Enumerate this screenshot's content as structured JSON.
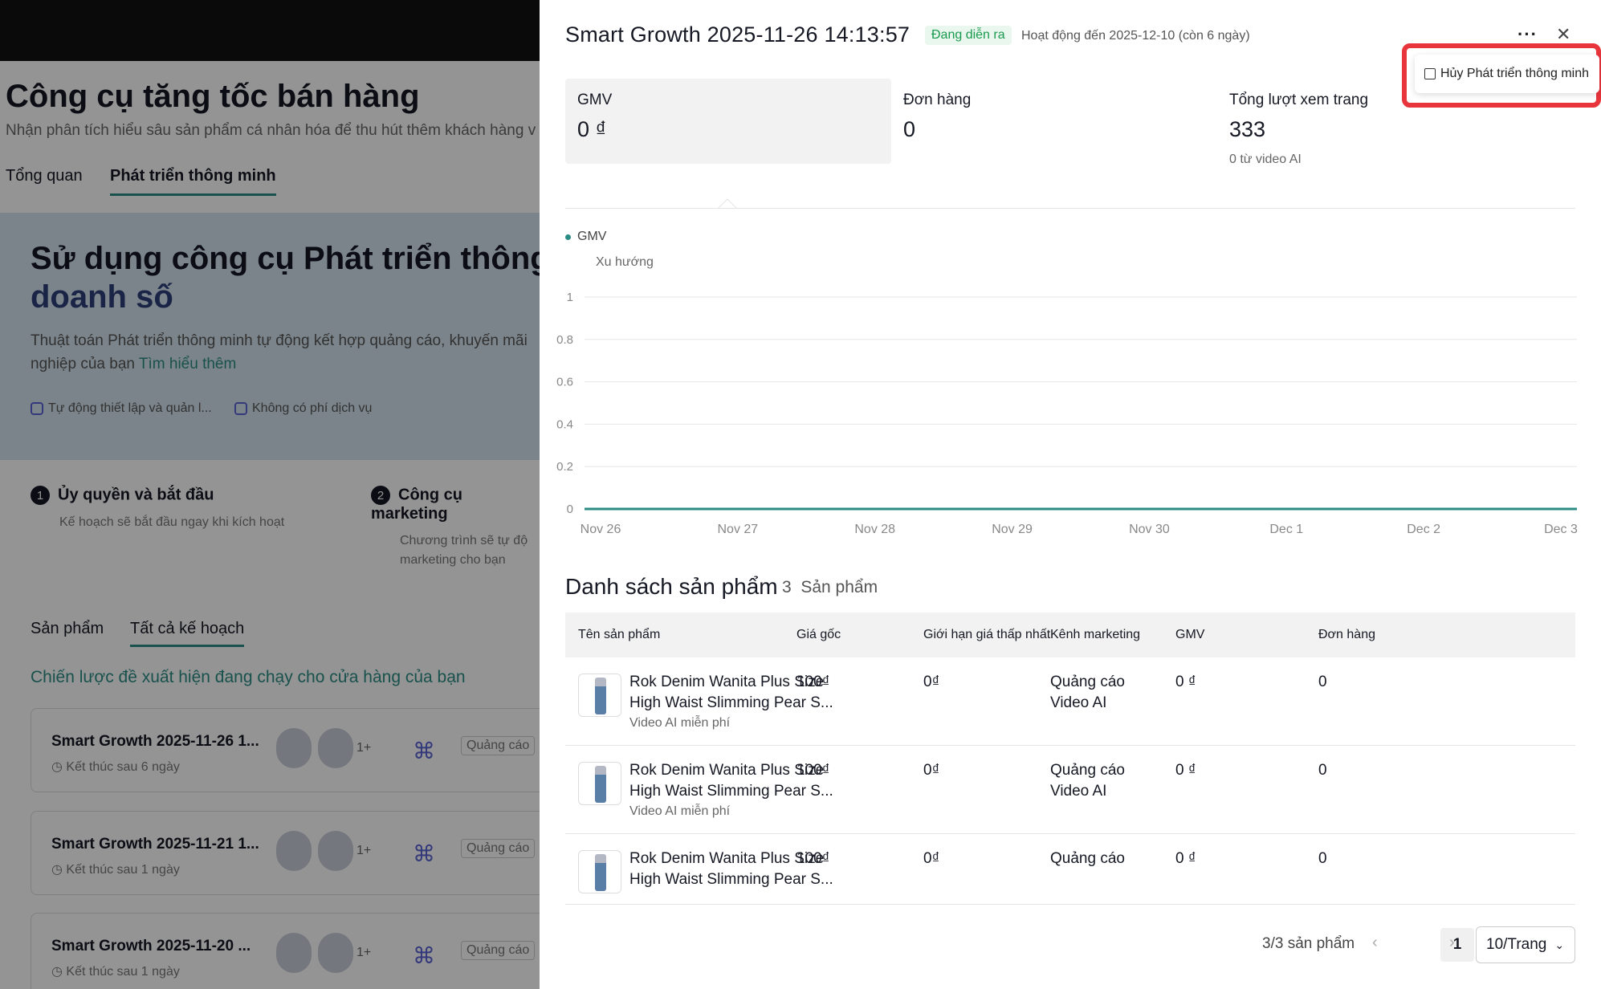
{
  "background": {
    "title": "Công cụ tăng tốc bán hàng",
    "subtitle": "Nhận phân tích hiểu sâu sản phẩm cá nhân hóa để thu hút thêm khách hàng v",
    "tabs": [
      "Tổng quan",
      "Phát triển thông minh"
    ],
    "hero_title_1": "Sử dụng công cụ Phát triển thông m",
    "hero_title_2": "doanh số",
    "hero_desc_1": "Thuật toán Phát triển thông minh tự động kết hợp quảng cáo, khuyến mãi",
    "hero_desc_2": "nghiệp của bạn",
    "hero_link": "Tìm hiểu thêm",
    "features": [
      "Tự động thiết lập và quản l...",
      "Không có phí dịch vụ"
    ],
    "steps": [
      {
        "num": "1",
        "title": "Ủy quyền và bắt đầu",
        "desc": "Kế hoạch sẽ bắt đầu ngay khi kích hoạt",
        "desc2": ""
      },
      {
        "num": "2",
        "title": "Công cụ marketing",
        "desc": "Chương trình sẽ tự độ",
        "desc2": "marketing cho bạn"
      }
    ],
    "bottom_tabs": [
      "Sản phẩm",
      "Tất cả kế hoạch"
    ],
    "strategy_title": "Chiến lược đề xuất hiện đang chạy cho cửa hàng của bạn",
    "plans": [
      {
        "title": "Smart Growth 2025-11-26 1...",
        "ends": "Kết thúc sau 6 ngày",
        "more": "1+",
        "badge": "Quảng cáo"
      },
      {
        "title": "Smart Growth 2025-11-21 1...",
        "ends": "Kết thúc sau 1 ngày",
        "more": "1+",
        "badge": "Quảng cáo"
      },
      {
        "title": "Smart Growth 2025-11-20 ...",
        "ends": "Kết thúc sau 1 ngày",
        "more": "1+",
        "badge": "Quảng cáo"
      }
    ]
  },
  "drawer": {
    "title": "Smart Growth 2025-11-26 14:13:57",
    "status": "Đang diễn ra",
    "active_until": "Hoạt động đến 2025-12-10 (còn 6 ngày)",
    "more_icon": "ellipsis-icon",
    "close_icon": "close-icon",
    "cancel_label": "Hủy Phát triển thông minh",
    "metrics": [
      {
        "label": "GMV",
        "value": "0 ₫",
        "sub": ""
      },
      {
        "label": "Đơn hàng",
        "value": "0",
        "sub": ""
      },
      {
        "label": "Tổng lượt xem trang",
        "value": "333",
        "sub": "0 từ video AI"
      }
    ],
    "legend": "GMV",
    "trend_label": "Xu hướng",
    "products_title": "Danh sách sản phẩm",
    "products_count": "3",
    "products_unit": "Sản phẩm",
    "columns": [
      "Tên sản phẩm",
      "Giá gốc",
      "Giới hạn giá thấp nhất",
      "Kênh marketing",
      "GMV",
      "Đơn hàng"
    ],
    "rows": [
      {
        "name1": "Rok Denim Wanita Plus Size",
        "name2": "High Waist Slimming Pear S...",
        "tag": "Video AI miễn phí",
        "price": "100₫",
        "min": "0₫",
        "ch1": "Quảng cáo",
        "ch2": "Video AI",
        "gmv": "0 ₫",
        "orders": "0"
      },
      {
        "name1": "Rok Denim Wanita Plus Size",
        "name2": "High Waist Slimming Pear S...",
        "tag": "Video AI miễn phí",
        "price": "100₫",
        "min": "0₫",
        "ch1": "Quảng cáo",
        "ch2": "Video AI",
        "gmv": "0 ₫",
        "orders": "0"
      },
      {
        "name1": "Rok Denim Wanita Plus Size",
        "name2": "High Waist Slimming Pear S...",
        "tag": "",
        "price": "100₫",
        "min": "0₫",
        "ch1": "Quảng cáo",
        "ch2": "",
        "gmv": "0 ₫",
        "orders": "0"
      }
    ],
    "pager": {
      "total": "3/3 sản phẩm",
      "current": "1",
      "page_size": "10/Trang"
    }
  },
  "chart_data": {
    "type": "line",
    "series": [
      {
        "name": "GMV",
        "values": [
          0,
          0,
          0,
          0,
          0,
          0,
          0,
          0
        ]
      }
    ],
    "categories": [
      "Nov 26",
      "Nov 27",
      "Nov 28",
      "Nov 29",
      "Nov 30",
      "Dec 1",
      "Dec 2",
      "Dec 3"
    ],
    "yticks": [
      "1",
      "0.8",
      "0.6",
      "0.4",
      "0.2",
      "0"
    ],
    "ylim": [
      0,
      1
    ],
    "line_color": "#2b8c84",
    "grid": true
  }
}
